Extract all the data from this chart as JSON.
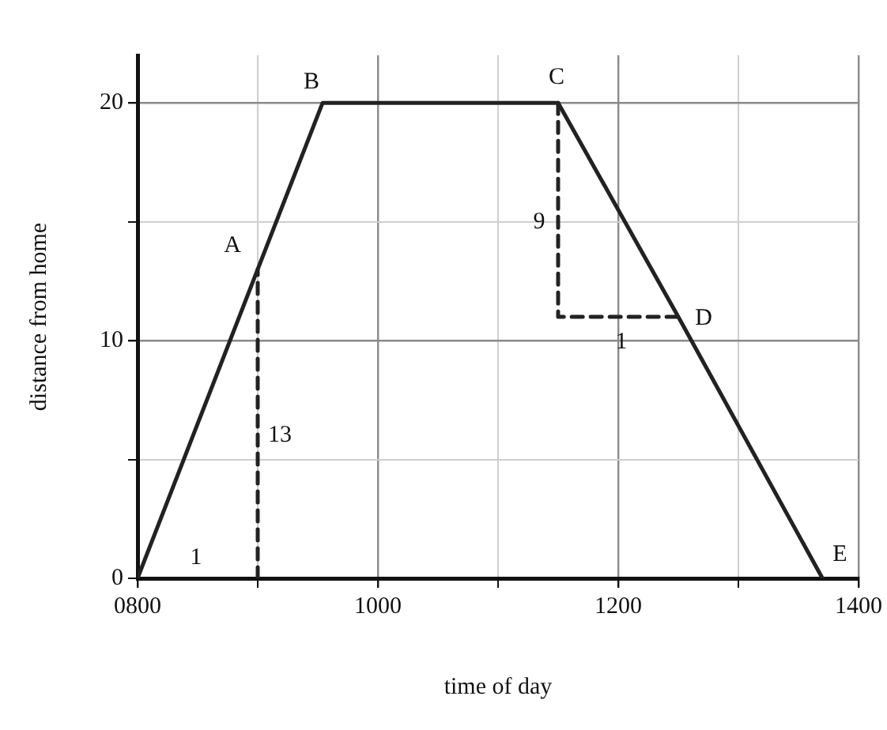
{
  "chart_data": {
    "type": "line",
    "xlabel": "time of day",
    "ylabel": "distance from home",
    "xlim": [
      800,
      1400
    ],
    "ylim": [
      0,
      22
    ],
    "xticks": [
      {
        "value": 800,
        "label": "0800"
      },
      {
        "value": 900,
        "label": null
      },
      1000,
      {
        "value": 1100,
        "label": null
      },
      1200,
      {
        "value": 1300,
        "label": null
      },
      1400
    ],
    "yticks": [
      0,
      {
        "value": 5,
        "label": null
      },
      10,
      {
        "value": 15,
        "label": null
      },
      20
    ],
    "grid": true,
    "legend": false,
    "marker": "none",
    "series": [
      {
        "x": [
          800,
          900,
          954,
          1150,
          1250,
          1370
        ],
        "values": [
          0,
          13,
          20,
          20,
          11,
          0
        ],
        "color": "#222222",
        "line_style": "solid"
      },
      {
        "x": [
          900,
          900
        ],
        "values": [
          0,
          13
        ],
        "color": "#222222",
        "line_style": "dashed"
      },
      {
        "x": [
          1150,
          1150,
          1250
        ],
        "values": [
          20,
          11,
          11
        ],
        "color": "#222222",
        "line_style": "dashed"
      }
    ],
    "annotations": [
      {
        "text": "A",
        "x": 900,
        "y": 13
      },
      {
        "text": "B",
        "x": 954,
        "y": 20
      },
      {
        "text": "C",
        "x": 1150,
        "y": 20
      },
      {
        "text": "D",
        "x": 1250,
        "y": 11
      },
      {
        "text": "E",
        "x": 1370,
        "y": 0
      },
      {
        "text": "13",
        "x": 900,
        "y": 6
      },
      {
        "text": "9",
        "x": 1150,
        "y": 15
      },
      {
        "text": "1",
        "x": 1200,
        "y": 11
      },
      {
        "text": "1",
        "x": 900,
        "y": 0
      }
    ]
  }
}
